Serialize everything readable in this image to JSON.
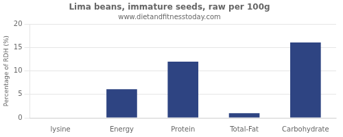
{
  "chart_data": {
    "type": "bar",
    "title": "Lima beans, immature seeds, raw per 100g",
    "subtitle": "www.dietandfitnesstoday.com",
    "categories": [
      "lysine",
      "Energy",
      "Protein",
      "Total-Fat",
      "Carbohydrate"
    ],
    "values": [
      0,
      6.1,
      12.0,
      1.0,
      16.1
    ],
    "color": "#2e4482",
    "ylabel": "Percentage of RDH (%)",
    "ylim": [
      0,
      20
    ],
    "yticks": [
      0,
      5,
      10,
      15,
      20
    ],
    "grid": true
  }
}
